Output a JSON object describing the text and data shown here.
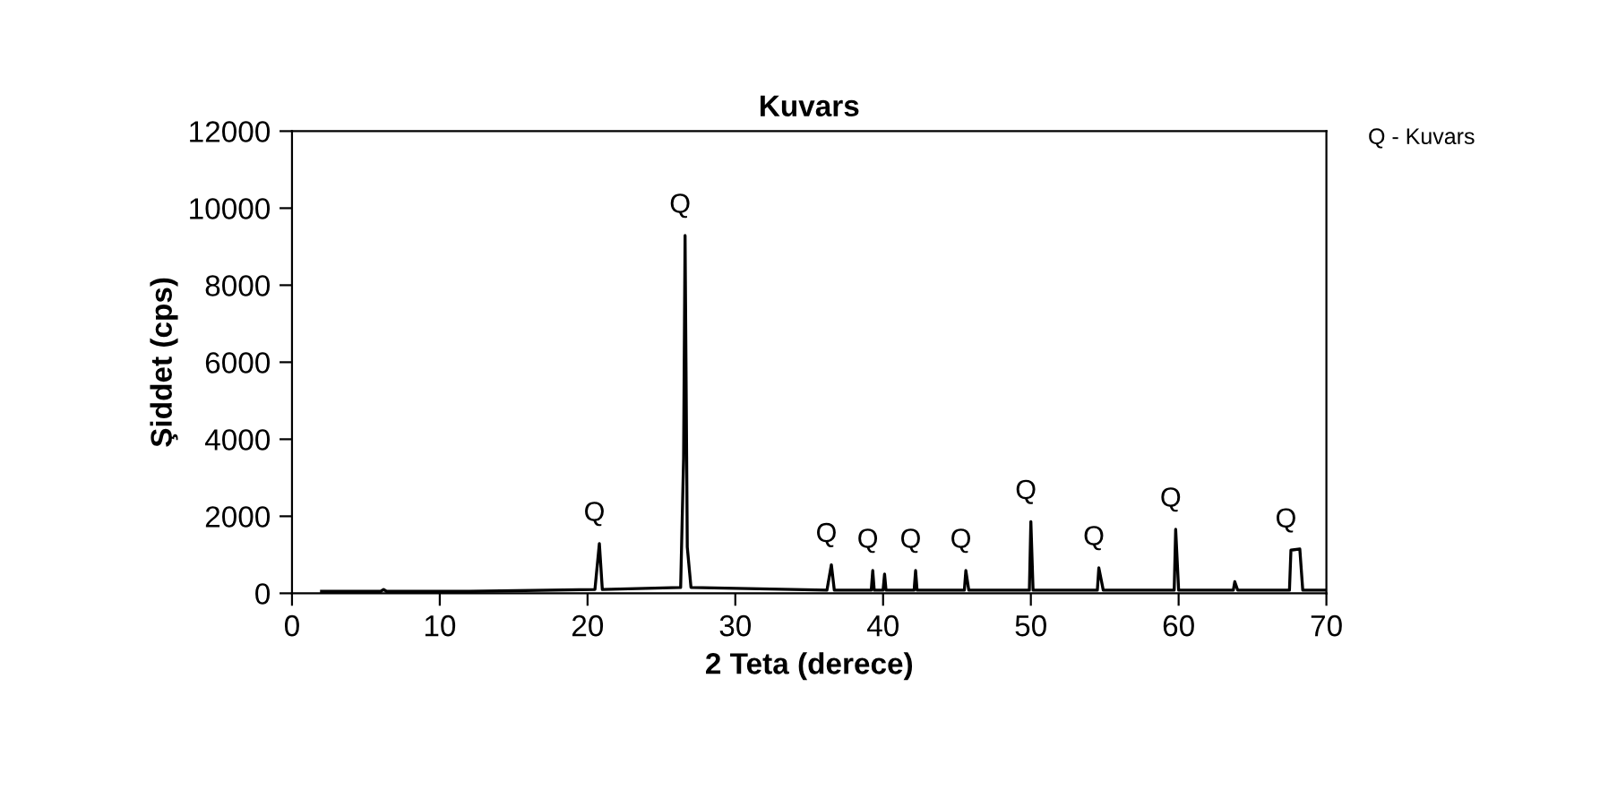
{
  "chart_data": {
    "type": "line",
    "title": "Kuvars",
    "xlabel": "2 Teta (derece)",
    "ylabel": "Şiddet (cps)",
    "xlim": [
      0,
      70
    ],
    "xticks": [
      0,
      10,
      20,
      30,
      40,
      50,
      60,
      70
    ],
    "ylim": [
      0,
      12000
    ],
    "yticks": [
      0,
      2000,
      4000,
      6000,
      8000,
      10000,
      12000
    ],
    "grid": false,
    "marker": "none",
    "line_style": "solid",
    "series": [
      {
        "color": "#000000",
        "x": [
          2,
          6,
          6.2,
          6.4,
          12,
          20.5,
          20.8,
          21.0,
          26.3,
          26.5,
          26.6,
          26.75,
          27.0,
          36.2,
          36.5,
          36.7,
          39.2,
          39.3,
          39.4,
          40.0,
          40.1,
          40.2,
          42.1,
          42.2,
          42.3,
          45.5,
          45.6,
          45.8,
          49.9,
          50.0,
          50.15,
          54.5,
          54.6,
          54.9,
          59.7,
          59.8,
          60.0,
          63.7,
          63.8,
          64.0,
          67.5,
          67.6,
          68.2,
          68.4,
          70
        ],
        "values": [
          50,
          50,
          100,
          50,
          50,
          100,
          1290,
          100,
          150,
          3500,
          9290,
          1200,
          150,
          80,
          740,
          80,
          80,
          590,
          80,
          80,
          500,
          80,
          80,
          590,
          80,
          80,
          590,
          80,
          80,
          1860,
          80,
          80,
          660,
          80,
          80,
          1660,
          80,
          80,
          300,
          80,
          80,
          1120,
          1150,
          80,
          80
        ]
      }
    ],
    "annotations": [
      {
        "text": "Q",
        "x": 20.8,
        "y": 1290
      },
      {
        "text": "Q",
        "x": 26.6,
        "y": 9290
      },
      {
        "text": "Q",
        "x": 36.5,
        "y": 740
      },
      {
        "text": "Q",
        "x": 39.3,
        "y": 590
      },
      {
        "text": "Q",
        "x": 42.2,
        "y": 590
      },
      {
        "text": "Q",
        "x": 45.6,
        "y": 590
      },
      {
        "text": "Q",
        "x": 50.0,
        "y": 1860
      },
      {
        "text": "Q",
        "x": 54.6,
        "y": 660
      },
      {
        "text": "Q",
        "x": 59.8,
        "y": 1660
      },
      {
        "text": "Q",
        "x": 67.6,
        "y": 1120
      },
      "Q - Kuvars"
    ]
  }
}
